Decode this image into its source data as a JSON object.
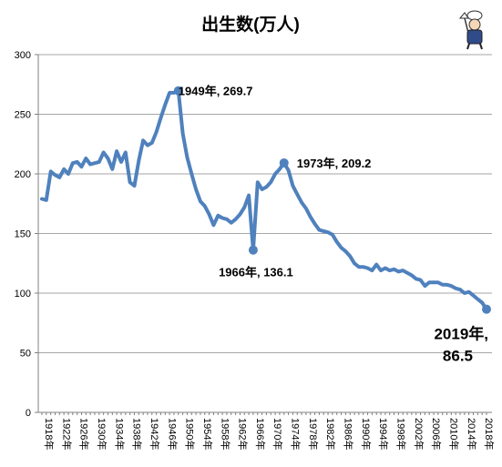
{
  "chart_data": {
    "type": "line",
    "title": "出生数(万人)",
    "xlabel": "",
    "ylabel": "",
    "ylim": [
      0,
      300
    ],
    "yticks": [
      0,
      50,
      100,
      150,
      200,
      250,
      300
    ],
    "grid": true,
    "legend": "none",
    "xtick_labels": [
      "1918年",
      "1922年",
      "1926年",
      "1930年",
      "1934年",
      "1938年",
      "1942年",
      "1946年",
      "1950年",
      "1954年",
      "1958年",
      "1962年",
      "1966年",
      "1970年",
      "1974年",
      "1978年",
      "1982年",
      "1986年",
      "1990年",
      "1994年",
      "1998年",
      "2002年",
      "2006年",
      "2010年",
      "2014年",
      "2018年"
    ],
    "series_color": "#4f81bd",
    "x": [
      1918,
      1919,
      1920,
      1921,
      1922,
      1923,
      1924,
      1925,
      1926,
      1927,
      1928,
      1929,
      1930,
      1931,
      1932,
      1933,
      1934,
      1935,
      1936,
      1937,
      1938,
      1939,
      1940,
      1941,
      1942,
      1943,
      1944,
      1945,
      1946,
      1947,
      1948,
      1949,
      1950,
      1951,
      1952,
      1953,
      1954,
      1955,
      1956,
      1957,
      1958,
      1959,
      1960,
      1961,
      1962,
      1963,
      1964,
      1965,
      1966,
      1967,
      1968,
      1969,
      1970,
      1971,
      1972,
      1973,
      1974,
      1975,
      1976,
      1977,
      1978,
      1979,
      1980,
      1981,
      1982,
      1983,
      1984,
      1985,
      1986,
      1987,
      1988,
      1989,
      1990,
      1991,
      1992,
      1993,
      1994,
      1995,
      1996,
      1997,
      1998,
      1999,
      2000,
      2001,
      2002,
      2003,
      2004,
      2005,
      2006,
      2007,
      2008,
      2009,
      2010,
      2011,
      2012,
      2013,
      2014,
      2015,
      2016,
      2017,
      2018,
      2019
    ],
    "values": [
      179,
      178,
      202,
      199,
      197,
      204,
      200,
      209,
      210,
      206,
      213,
      208,
      209,
      210,
      218,
      213,
      204,
      219,
      210,
      218,
      193,
      190,
      211,
      228,
      224,
      226,
      235,
      247,
      258,
      268,
      268,
      269.7,
      234,
      214,
      200,
      187,
      177,
      173,
      166,
      157,
      165,
      163,
      162,
      159,
      162,
      166,
      172,
      182,
      136.1,
      193,
      187,
      189,
      193,
      200,
      204,
      209.2,
      203,
      190,
      183,
      176,
      171,
      164,
      158,
      153,
      152,
      151,
      149,
      143,
      138,
      135,
      131,
      125,
      122,
      122,
      121,
      119,
      124,
      119,
      121,
      119,
      120,
      118,
      119,
      117,
      115,
      112,
      111,
      106,
      109,
      109,
      109,
      107,
      107,
      106,
      104,
      103,
      100,
      101,
      98,
      95,
      92,
      86.5
    ],
    "annotations": [
      {
        "year": 1949,
        "value": 269.7,
        "label": "1949年, 269.7"
      },
      {
        "year": 1966,
        "value": 136.1,
        "label": "1966年, 136.1"
      },
      {
        "year": 1973,
        "value": 209.2,
        "label": "1973年, 209.2"
      },
      {
        "year": 2019,
        "value": 86.5,
        "label_line1": "2019年,",
        "label_line2": "86.5"
      }
    ]
  }
}
